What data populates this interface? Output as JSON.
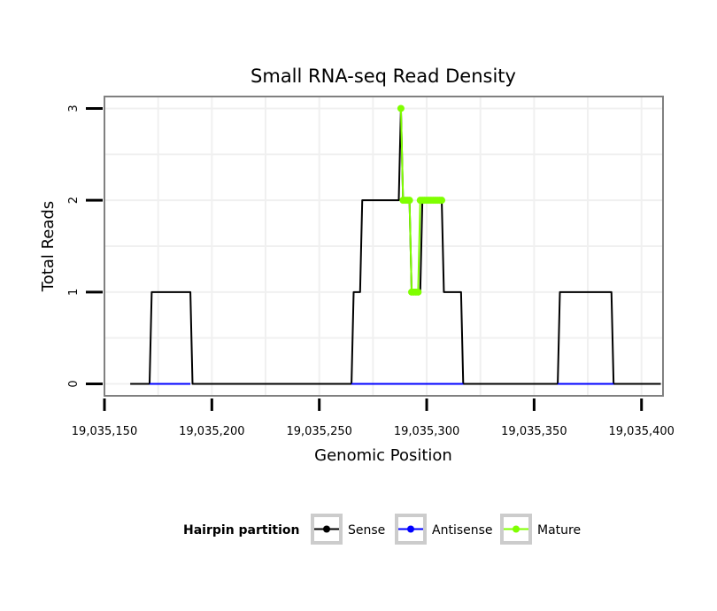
{
  "chart_data": {
    "type": "line",
    "title": "Small RNA-seq Read Density",
    "xlabel": "Genomic Position",
    "ylabel": "Total Reads",
    "xlim": [
      19035150,
      19035410
    ],
    "ylim": [
      -0.13,
      3.13
    ],
    "x_ticks": [
      19035150,
      19035200,
      19035250,
      19035300,
      19035350,
      19035400
    ],
    "x_tick_labels": [
      "19,035,150",
      "19,035,200",
      "19,035,250",
      "19,035,300",
      "19,035,350",
      "19,035,400"
    ],
    "y_ticks": [
      0,
      1,
      2,
      3
    ],
    "y_tick_labels": [
      "0",
      "1",
      "2",
      "3"
    ],
    "grid": true,
    "legend": {
      "title": "Hairpin partition",
      "position": "bottom",
      "entries": [
        {
          "label": "Sense",
          "color": "#000000"
        },
        {
          "label": "Antisense",
          "color": "#0000ff"
        },
        {
          "label": "Mature",
          "color": "#7fff00"
        }
      ]
    },
    "series": [
      {
        "name": "Sense",
        "color": "#000000",
        "markers": false,
        "x": [
          19035162,
          19035171,
          19035172,
          19035190,
          19035191,
          19035265,
          19035266,
          19035269,
          19035270,
          19035287,
          19035288,
          19035289,
          19035292,
          19035293,
          19035297,
          19035298,
          19035307,
          19035308,
          19035316,
          19035317,
          19035361,
          19035362,
          19035386,
          19035387,
          19035409
        ],
        "y": [
          0,
          0,
          1,
          1,
          0,
          0,
          1,
          1,
          2,
          2,
          3,
          2,
          2,
          1,
          1,
          2,
          2,
          1,
          1,
          0,
          0,
          1,
          1,
          0,
          0
        ]
      },
      {
        "name": "Antisense",
        "color": "#0000ff",
        "markers": false,
        "segments": [
          {
            "x": [
              19035171,
              19035190
            ],
            "y": [
              0,
              0
            ]
          },
          {
            "x": [
              19035265,
              19035317
            ],
            "y": [
              0,
              0
            ]
          },
          {
            "x": [
              19035361,
              19035387
            ],
            "y": [
              0,
              0
            ]
          }
        ]
      },
      {
        "name": "Mature",
        "color": "#7fff00",
        "markers": true,
        "x": [
          19035288,
          19035289,
          19035290,
          19035291,
          19035292,
          19035293,
          19035294,
          19035295,
          19035296,
          19035297,
          19035298,
          19035299,
          19035300,
          19035301,
          19035302,
          19035303,
          19035304,
          19035305,
          19035306,
          19035307
        ],
        "y": [
          3,
          2,
          2,
          2,
          2,
          1,
          1,
          1,
          1,
          2,
          2,
          2,
          2,
          2,
          2,
          2,
          2,
          2,
          2,
          2
        ]
      }
    ]
  }
}
